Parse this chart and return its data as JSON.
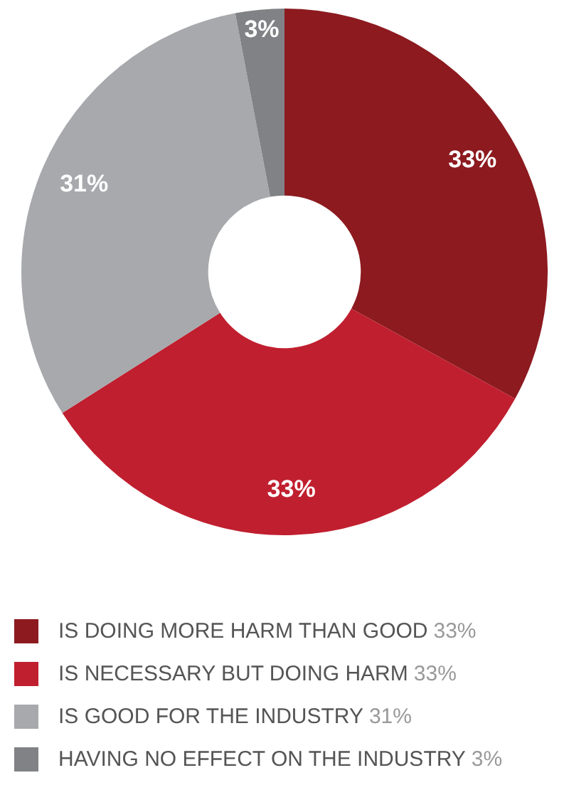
{
  "chart_data": {
    "type": "donut",
    "categories": [
      "IS DOING MORE HARM THAN GOOD",
      "IS NECESSARY BUT DOING HARM",
      "IS GOOD FOR THE INDUSTRY",
      "HAVING NO EFFECT ON THE INDUSTRY"
    ],
    "values": [
      33,
      33,
      31,
      3
    ],
    "value_labels": [
      "33%",
      "33%",
      "31%",
      "3%"
    ],
    "colors": [
      "#8c1a1f",
      "#c01f2f",
      "#a7a9ac",
      "#808285"
    ],
    "legend": "bottom"
  }
}
